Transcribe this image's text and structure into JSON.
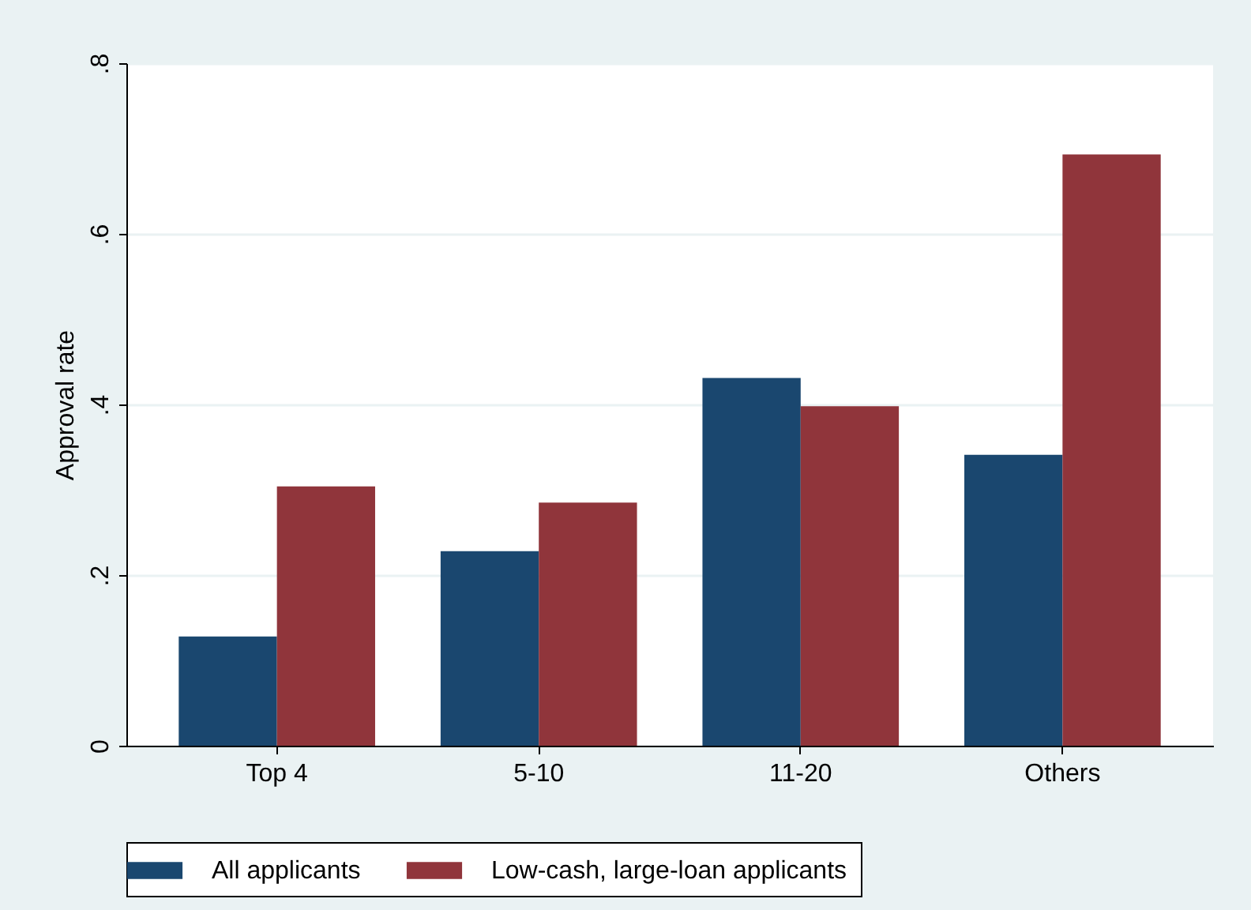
{
  "chart_data": {
    "type": "bar",
    "ylabel": "Approval rate",
    "categories": [
      "Top 4",
      "5-10",
      "11-20",
      "Others"
    ],
    "series": [
      {
        "name": "All applicants",
        "color": "#1a476f",
        "values": [
          0.128,
          0.228,
          0.431,
          0.341
        ]
      },
      {
        "name": "Low-cash, large-loan applicants",
        "color": "#90353b",
        "values": [
          0.304,
          0.285,
          0.398,
          0.693
        ]
      }
    ],
    "ylim": [
      0,
      0.8
    ],
    "yticks": [
      {
        "value": 0,
        "label": "0"
      },
      {
        "value": 0.2,
        "label": ".2"
      },
      {
        "value": 0.4,
        "label": ".4"
      },
      {
        "value": 0.6,
        "label": ".6"
      },
      {
        "value": 0.8,
        "label": ".8"
      }
    ],
    "grid": "y",
    "legend": "bottom"
  }
}
